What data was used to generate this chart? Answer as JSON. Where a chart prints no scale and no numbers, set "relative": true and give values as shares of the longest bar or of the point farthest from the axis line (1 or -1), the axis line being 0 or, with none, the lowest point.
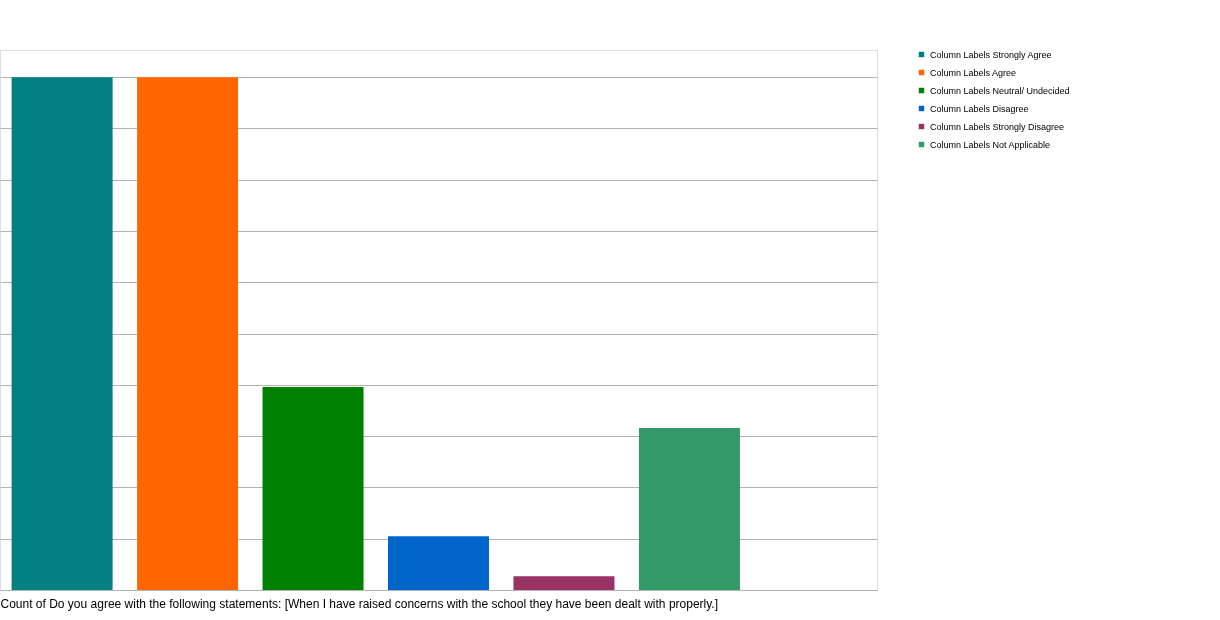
{
  "chart_data": {
    "type": "bar",
    "relative": true,
    "xlabel": "Count of Do you agree with the following statements: [When I have raised concerns with the school they have been dealt with properly.]",
    "categories": [
      null
    ],
    "series": [
      {
        "name": "Column Labels Strongly Agree",
        "color": "#008080",
        "values": [
          1
        ]
      },
      {
        "name": "Column Labels Agree",
        "color": "#ff6600",
        "values": [
          1
        ]
      },
      {
        "name": "Column Labels Neutral/ Undecided",
        "color": "#008000",
        "values": [
          0.396
        ]
      },
      {
        "name": "Column Labels Disagree",
        "color": "#0066cc",
        "values": [
          0.105
        ]
      },
      {
        "name": "Column Labels Strongly Disagree",
        "color": "#993366",
        "values": [
          0.027
        ]
      },
      {
        "name": "Column Labels Not Applicable",
        "color": "#339966",
        "values": [
          0.316
        ]
      }
    ],
    "grid": "y",
    "legend": "right"
  }
}
